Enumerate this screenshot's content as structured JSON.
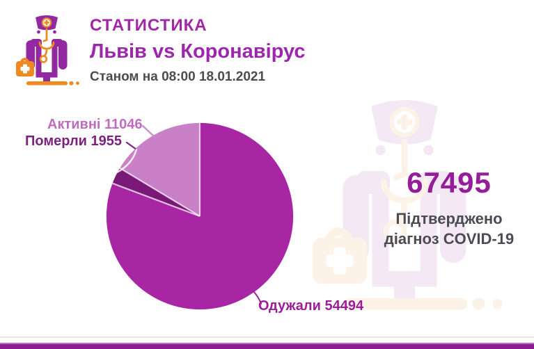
{
  "header": {
    "title": "СТАТИСТИКА",
    "subtitle": "Львів vs Коронавірус",
    "date_line": "Станом на 08:00 18.01.2021"
  },
  "summary": {
    "confirmed_value": "67495",
    "confirmed_caption_line1": "Підтверджено",
    "confirmed_caption_line2": "діагноз COVID-19"
  },
  "chart_data": {
    "type": "pie",
    "total": 67495,
    "start_angle_deg": 0,
    "direction": "clockwise",
    "legend_position": "callout-labels",
    "separator_color": "rgba(255,255,255,0.7)",
    "slices": [
      {
        "label": "Одужали",
        "value": 54494,
        "display": "Одужали 54494",
        "color": "#a825a4"
      },
      {
        "label": "Померли",
        "value": 1955,
        "display": "Померли 1955",
        "color": "#7a1878"
      },
      {
        "label": "Активні",
        "value": 11046,
        "display": "Активні 11046",
        "color": "#c980c7"
      }
    ]
  },
  "colors": {
    "title": "#a426a8",
    "subtitle": "#9c27ad",
    "text_dark": "#4b4b52",
    "confirmed_number": "#941e9a",
    "label_active": "#bf6cbf",
    "label_deceased": "#7d2180",
    "label_recovered": "#9c1d9c",
    "leader_active": "#c98fc9",
    "leader_deceased_dark": "#7d2180",
    "leader_recovered": "#9c1d9c",
    "bottom_bar": "#8e1a92",
    "bottom_bar_highlight": "#b671b8",
    "icon_purple": "#9229a0",
    "icon_orange": "#ee8a21",
    "background": "#ffffff"
  },
  "icons": {
    "logo": "doctor-icon",
    "watermark": "doctor-watermark-icon"
  }
}
